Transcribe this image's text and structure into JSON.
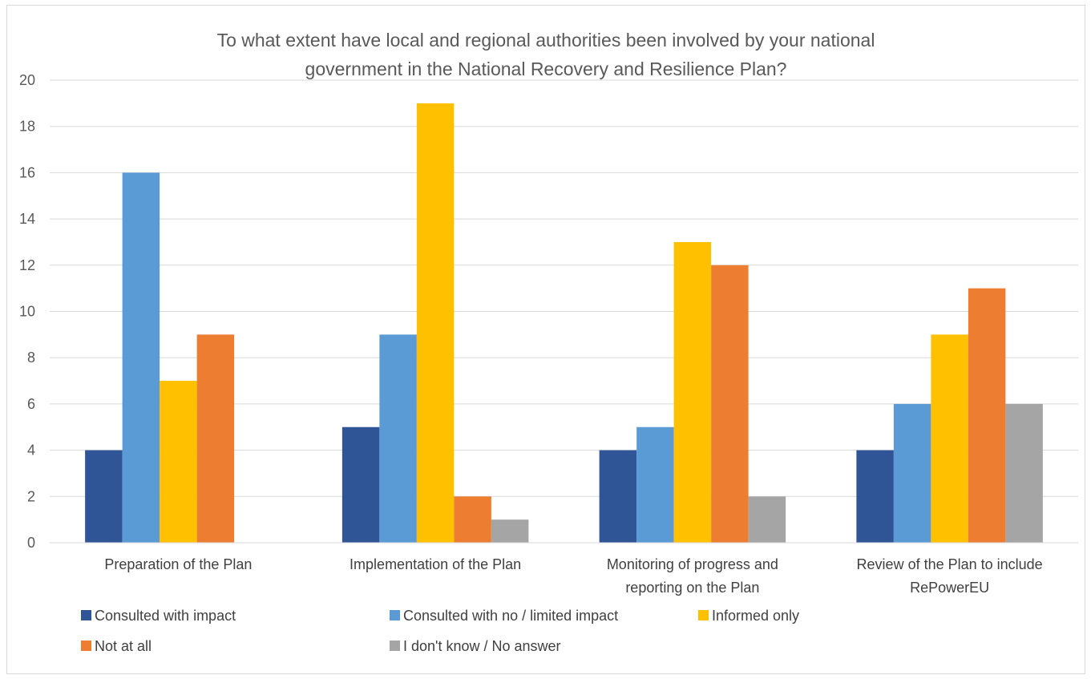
{
  "chart_data": {
    "type": "bar",
    "title": "To what extent have local and regional authorities been involved by your national government in the National Recovery and Resilience Plan?",
    "title_lines": [
      "To what extent have local and regional authorities been involved by your national",
      "government in the National Recovery and Resilience Plan?"
    ],
    "categories": [
      "Preparation of the Plan",
      "Implementation of the Plan",
      "Monitoring of progress and reporting on the Plan",
      "Review of the Plan to include RePowerEU"
    ],
    "category_lines": [
      [
        "Preparation of the Plan"
      ],
      [
        "Implementation of the Plan"
      ],
      [
        "Monitoring of progress and",
        "reporting on the Plan"
      ],
      [
        "Review of the Plan to include",
        "RePowerEU"
      ]
    ],
    "series": [
      {
        "name": "Consulted with impact",
        "color": "#2f5597",
        "values": [
          4,
          5,
          4,
          4
        ]
      },
      {
        "name": "Consulted with no / limited impact",
        "color": "#5b9bd5",
        "values": [
          16,
          9,
          5,
          6
        ]
      },
      {
        "name": "Informed only",
        "color": "#ffc000",
        "values": [
          7,
          19,
          13,
          9
        ]
      },
      {
        "name": "Not at all",
        "color": "#ed7d31",
        "values": [
          9,
          2,
          12,
          11
        ]
      },
      {
        "name": "I don't know / No answer",
        "color": "#a5a5a5",
        "values": [
          0,
          1,
          2,
          6
        ]
      }
    ],
    "xlabel": "",
    "ylabel": "",
    "ylim": [
      0,
      20
    ],
    "yticks": [
      "0",
      "2",
      "4",
      "6",
      "8",
      "10",
      "12",
      "14",
      "16",
      "18",
      "20"
    ],
    "grid": true,
    "legend_position": "bottom"
  }
}
